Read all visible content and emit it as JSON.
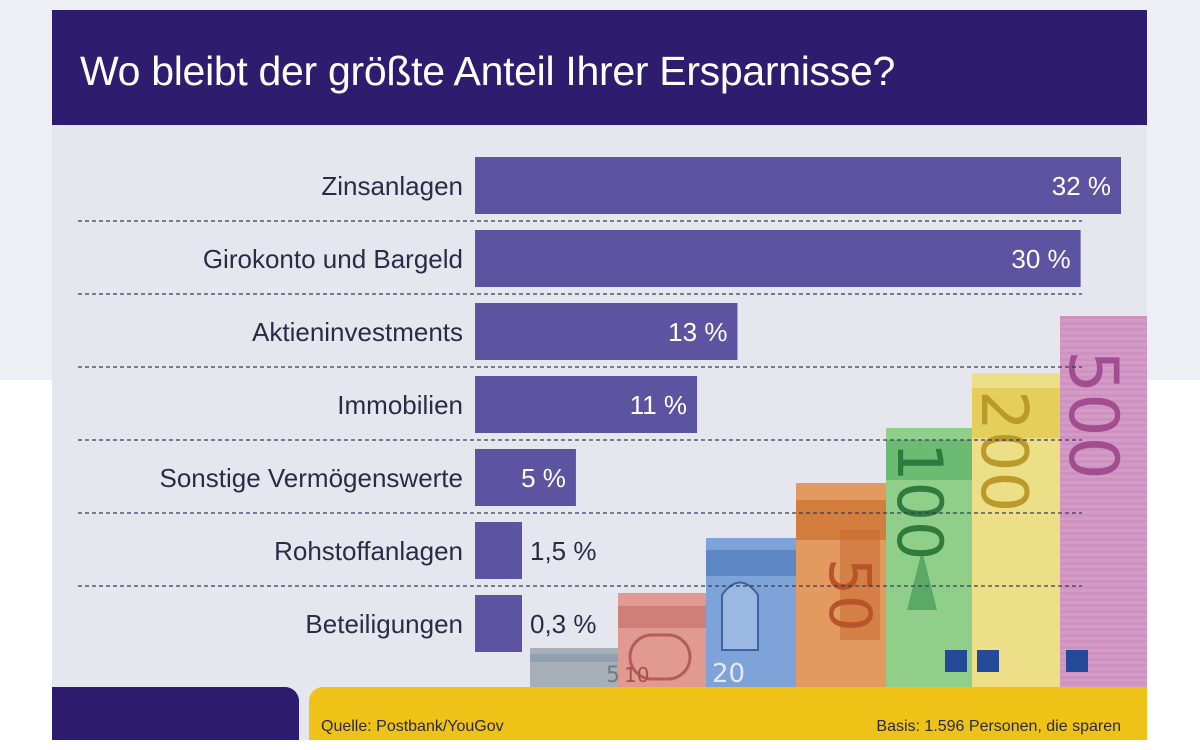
{
  "title": "Wo bleibt der größte Anteil Ihrer Ersparnisse?",
  "chart_data": {
    "type": "bar",
    "orientation": "horizontal",
    "title": "Wo bleibt der größte Anteil Ihrer Ersparnisse?",
    "categories": [
      "Zinsanlagen",
      "Girokonto und Bargeld",
      "Aktieninvestments",
      "Immobilien",
      "Sonstige Vermögenswerte",
      "Rohstoffanlagen",
      "Beteiligungen"
    ],
    "values": [
      32,
      30,
      13,
      11,
      5,
      1.5,
      0.3
    ],
    "value_labels": [
      "32 %",
      "30 %",
      "13 %",
      "11 %",
      "5 %",
      "1,5 %",
      "0,3 %"
    ],
    "unit": "%",
    "xlim": [
      0,
      32
    ],
    "bar_color": "#5c54a0"
  },
  "banknotes": [
    "5",
    "10",
    "20",
    "50",
    "100",
    "200",
    "500"
  ],
  "footer": {
    "source": "Quelle: Postbank/YouGov",
    "basis": "Basis: 1.596 Personen, die sparen"
  },
  "colors": {
    "header": "#2e1d6e",
    "panel": "#e6e7ee",
    "accent_yellow": "#eec217",
    "text_dark": "#2b2b45"
  }
}
